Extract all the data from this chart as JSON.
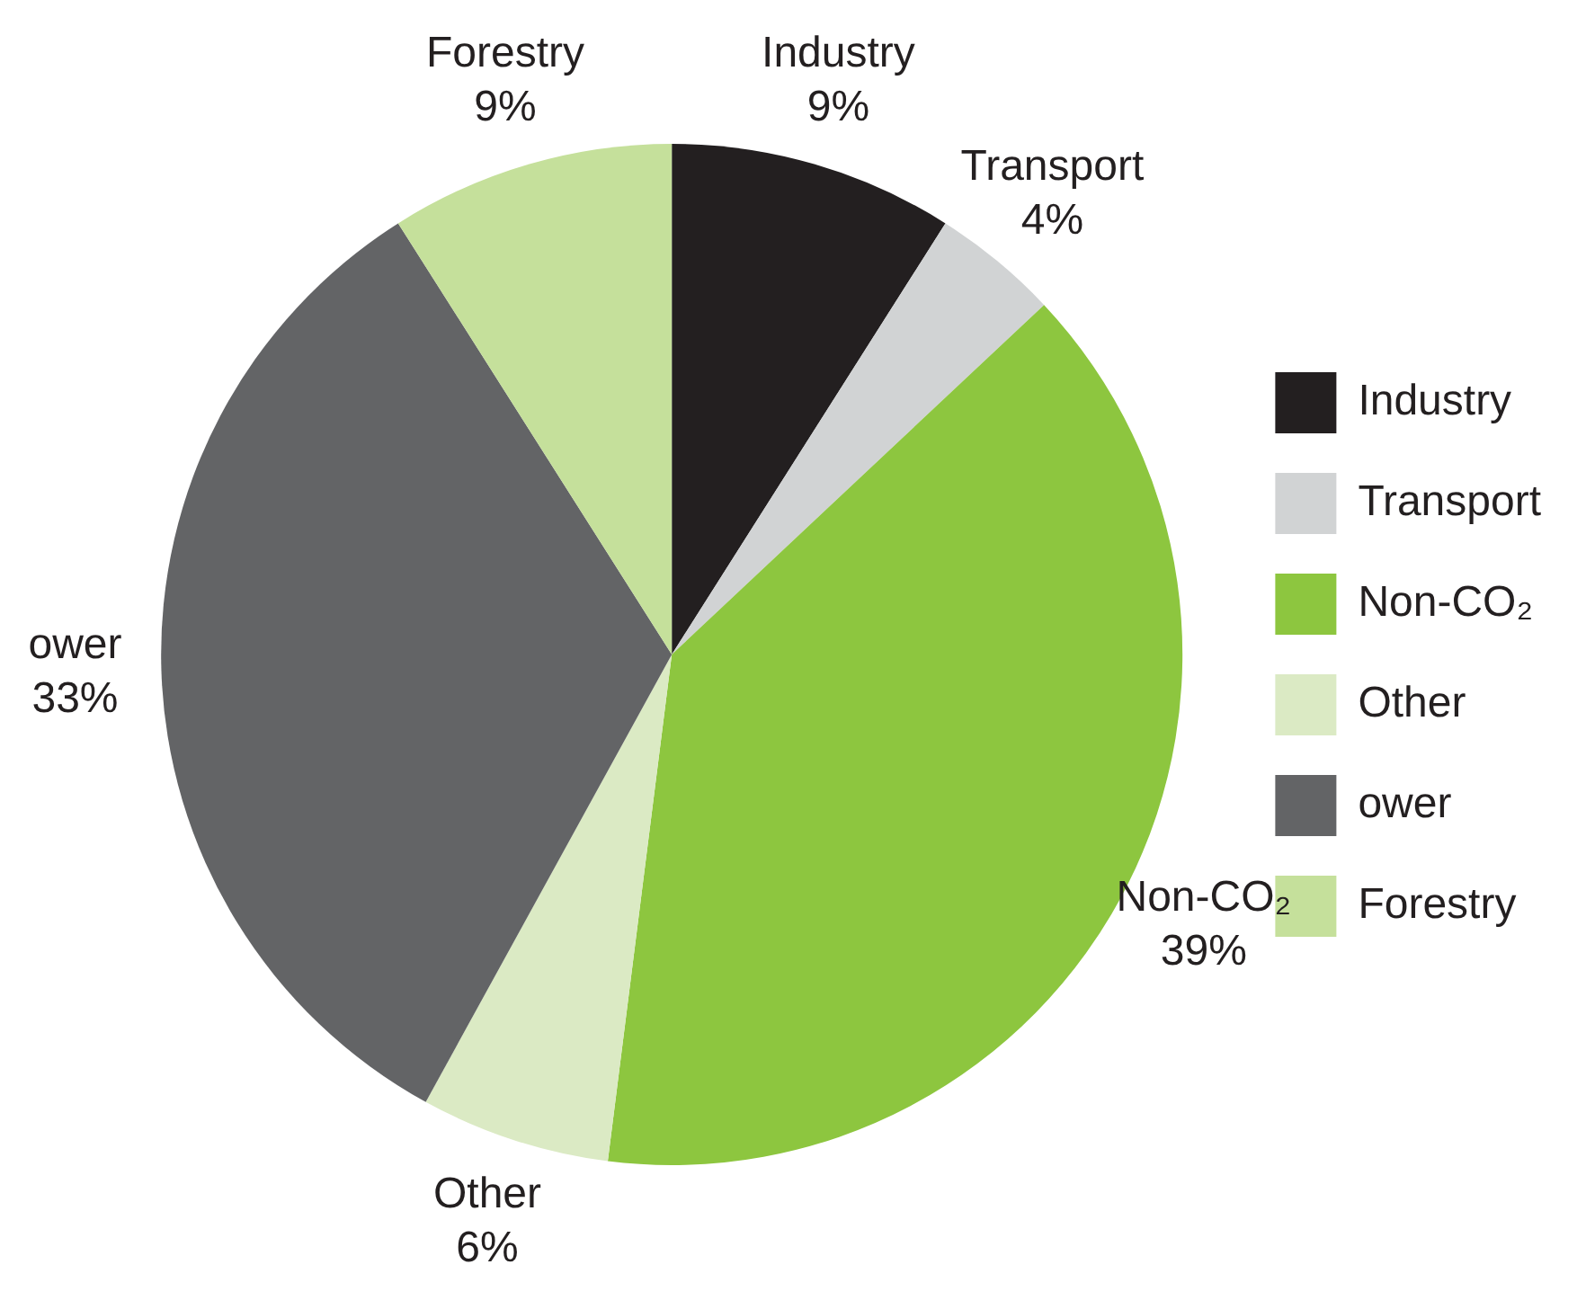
{
  "chart_data": {
    "type": "pie",
    "categories": [
      "Industry",
      "Transport",
      "Non-CO₂",
      "Other",
      "ower",
      "Forestry"
    ],
    "values": [
      9,
      4,
      39,
      6,
      33,
      9
    ],
    "value_labels": [
      "9%",
      "4%",
      "39%",
      "6%",
      "33%",
      "9%"
    ],
    "colors": [
      "#231f20",
      "#d1d3d4",
      "#8dc63f",
      "#dbeac4",
      "#636466",
      "#c5e09b"
    ],
    "legend": "right"
  }
}
